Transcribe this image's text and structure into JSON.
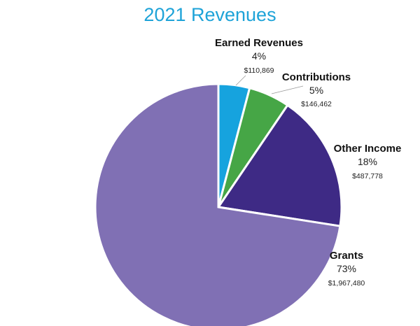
{
  "chart_data": {
    "type": "pie",
    "title": "2021 Revenues",
    "slices": [
      {
        "label": "Earned Revenues",
        "percent_label": "4%",
        "amount_label": "$110,869",
        "value": 110869,
        "color": "#16a3de"
      },
      {
        "label": "Contributions",
        "percent_label": "5%",
        "amount_label": "$146,462",
        "value": 146462,
        "color": "#46a646"
      },
      {
        "label": "Other Income",
        "percent_label": "18%",
        "amount_label": "$487,778",
        "value": 487778,
        "color": "#3e2a85"
      },
      {
        "label": "Grants",
        "percent_label": "73%",
        "amount_label": "$1,967,480",
        "value": 1967480,
        "color": "#8070b4"
      }
    ]
  }
}
